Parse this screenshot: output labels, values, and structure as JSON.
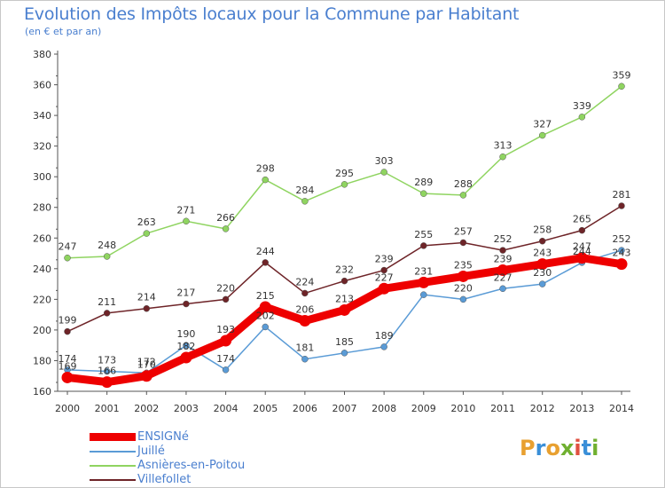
{
  "header": {
    "title": "Evolution des Impôts locaux pour la Commune par Habitant",
    "subtitle": "(en € et par an)"
  },
  "logo": {
    "text": "Proxiti",
    "colors": [
      "#e8a030",
      "#3a8fd8",
      "#e8a030",
      "#70b030",
      "#e05040",
      "#3a8fd8",
      "#70b030"
    ]
  },
  "chart_data": {
    "type": "line",
    "title": "Evolution des Impôts locaux pour la Commune par Habitant",
    "subtitle": "(en € et par an)",
    "xlabel": "",
    "ylabel": "",
    "x": [
      "2000",
      "2001",
      "2002",
      "2003",
      "2004",
      "2005",
      "2006",
      "2007",
      "2008",
      "2009",
      "2010",
      "2011",
      "2012",
      "2013",
      "2014"
    ],
    "ylim": [
      160,
      380
    ],
    "yticks": [
      160,
      180,
      200,
      220,
      240,
      260,
      280,
      300,
      320,
      340,
      360,
      380
    ],
    "grid": false,
    "legend_position": "bottom-left",
    "series": [
      {
        "name": "Asnières-en-Poitou",
        "color": "#8fd460",
        "values": [
          247,
          248,
          263,
          271,
          266,
          298,
          284,
          295,
          303,
          289,
          288,
          313,
          327,
          339,
          359
        ]
      },
      {
        "name": "Villefollet",
        "color": "#6e2428",
        "values": [
          199,
          211,
          214,
          217,
          220,
          244,
          224,
          232,
          239,
          255,
          257,
          252,
          258,
          265,
          281
        ]
      },
      {
        "name": "Juillé",
        "color": "#5a9bd6",
        "values": [
          174,
          173,
          172,
          190,
          174,
          202,
          181,
          185,
          189,
          223,
          220,
          227,
          230,
          244,
          252
        ]
      },
      {
        "name": "ENSIGNé",
        "color": "#ee0000",
        "values": [
          169,
          166,
          170,
          182,
          193,
          215,
          206,
          213,
          227,
          231,
          235,
          239,
          243,
          247,
          243
        ]
      }
    ],
    "data_labels": {
      "Asnières-en-Poitou": [
        "247",
        "248",
        "263",
        "271",
        "266",
        "298",
        "284",
        "295",
        "303",
        "289",
        "288",
        "313",
        "327",
        "339",
        "359"
      ],
      "Villefollet": [
        "199",
        "211",
        "214",
        "217",
        "220",
        "244",
        "224",
        "232",
        "239",
        "255",
        "257",
        "252",
        "258",
        "265",
        "281"
      ],
      "Juillé": [
        "174",
        "173",
        "172",
        "190",
        "174",
        "202",
        "181",
        "185",
        "189",
        "",
        "220",
        "227",
        "230",
        "244",
        "252"
      ],
      "ENSIGNé": [
        "169",
        "166",
        "170",
        "182",
        "193",
        "215",
        "206",
        "213",
        "227",
        "231",
        "235",
        "239",
        "243",
        "247",
        "243"
      ]
    }
  },
  "legend": [
    {
      "label": "ENSIGNé",
      "color": "#ee0000"
    },
    {
      "label": "Juillé",
      "color": "#5a9bd6"
    },
    {
      "label": "Asnières-en-Poitou",
      "color": "#8fd460"
    },
    {
      "label": "Villefollet",
      "color": "#6e2428"
    }
  ]
}
